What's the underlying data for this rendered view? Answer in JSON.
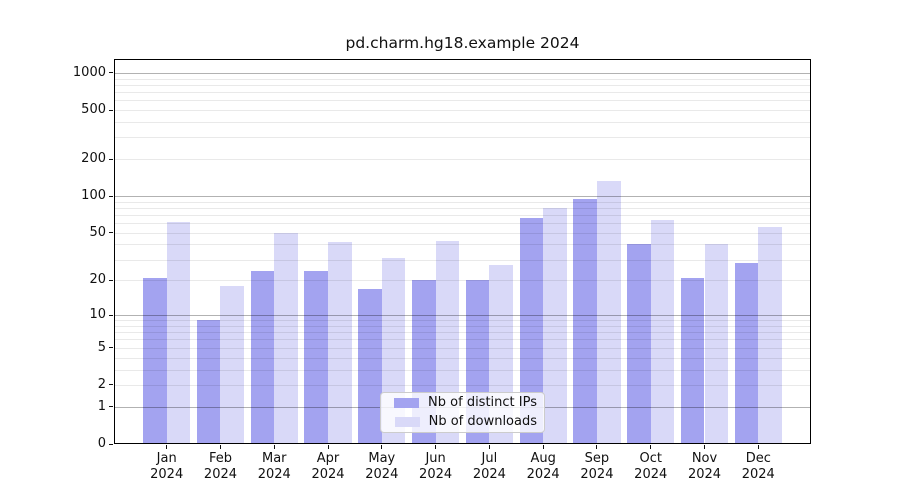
{
  "chart_data": {
    "type": "bar",
    "title": "pd.charm.hg18.example 2024",
    "categories": [
      "Jan",
      "Feb",
      "Mar",
      "Apr",
      "May",
      "Jun",
      "Jul",
      "Aug",
      "Sep",
      "Oct",
      "Nov",
      "Dec"
    ],
    "category_year": "2024",
    "series": [
      {
        "name": "Nb of distinct IPs",
        "color": "#a3a3f0",
        "values": [
          21,
          9,
          24,
          24,
          17,
          20,
          20,
          66,
          95,
          40,
          21,
          28
        ]
      },
      {
        "name": "Nb of downloads",
        "color": "#d9d9f8",
        "values": [
          61,
          18,
          50,
          42,
          31,
          43,
          27,
          80,
          132,
          64,
          40,
          56
        ]
      }
    ],
    "yscale": "log1p",
    "yticks": [
      0,
      1,
      2,
      5,
      10,
      20,
      50,
      100,
      200,
      500,
      1000
    ],
    "ylim": [
      0,
      1300
    ],
    "xlabel": "",
    "ylabel": "",
    "grid": true,
    "legend_position": "lower center",
    "colors": {
      "background": "#ffffff",
      "bar_distinct_ips": "#a3a3f0",
      "bar_downloads": "#d9d9f8",
      "major_gridline": "#b3b3b3",
      "minor_gridline": "#e9e9e9",
      "axis_text": "#111111"
    }
  }
}
